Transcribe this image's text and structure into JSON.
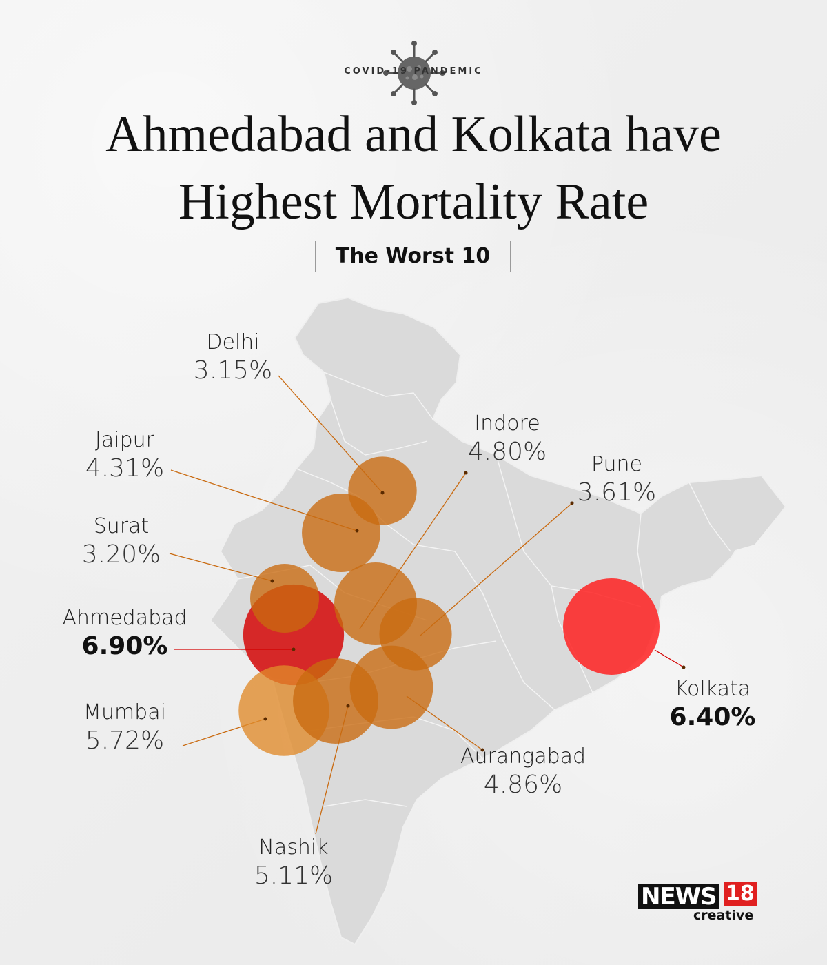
{
  "header": {
    "kicker": "COVID-19 PANDEMIC",
    "title_line1": "Ahmedabad and Kolkata have",
    "title_line2": "Highest Mortality Rate",
    "subtitle": "The Worst 10"
  },
  "cities": [
    {
      "name": "Delhi",
      "rate": "3.15%",
      "value": 3.15,
      "highlight": false,
      "color": "#c96a10"
    },
    {
      "name": "Jaipur",
      "rate": "4.31%",
      "value": 4.31,
      "highlight": false,
      "color": "#c96a10"
    },
    {
      "name": "Surat",
      "rate": "3.20%",
      "value": 3.2,
      "highlight": false,
      "color": "#c96a10"
    },
    {
      "name": "Ahmedabad",
      "rate": "6.90%",
      "value": 6.9,
      "highlight": true,
      "color": "#d40000"
    },
    {
      "name": "Mumbai",
      "rate": "5.72%",
      "value": 5.72,
      "highlight": false,
      "color": "#e08a2a"
    },
    {
      "name": "Nashik",
      "rate": "5.11%",
      "value": 5.11,
      "highlight": false,
      "color": "#c96a10"
    },
    {
      "name": "Aurangabad",
      "rate": "4.86%",
      "value": 4.86,
      "highlight": false,
      "color": "#c96a10"
    },
    {
      "name": "Pune",
      "rate": "3.61%",
      "value": 3.61,
      "highlight": false,
      "color": "#c96a10"
    },
    {
      "name": "Indore",
      "rate": "4.80%",
      "value": 4.8,
      "highlight": false,
      "color": "#c96a10"
    },
    {
      "name": "Kolkata",
      "rate": "6.40%",
      "value": 6.4,
      "highlight": true,
      "color": "#ff1a1a"
    }
  ],
  "branding": {
    "logo_text": "NEWS",
    "logo_number": "18",
    "logo_sub": "creative"
  },
  "icons": [
    "virus-icon"
  ]
}
